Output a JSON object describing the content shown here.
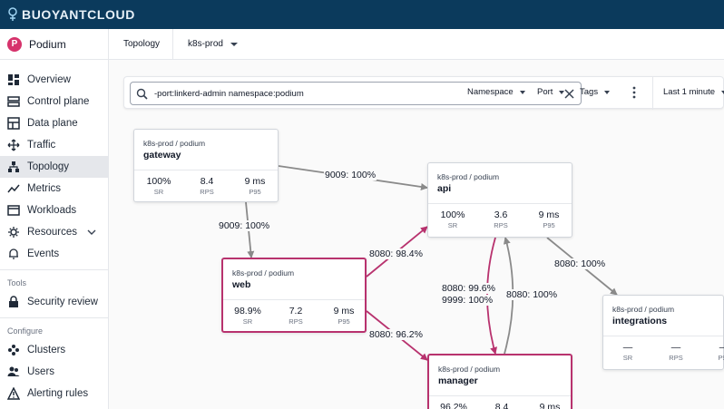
{
  "app": {
    "brand": "BUOYANTCLOUD"
  },
  "org": {
    "logo_letter": "P",
    "name": "Podium"
  },
  "sidebar": {
    "items": [
      {
        "label": "Overview",
        "icon": "dashboard-icon"
      },
      {
        "label": "Control plane",
        "icon": "control-plane-icon"
      },
      {
        "label": "Data plane",
        "icon": "data-plane-icon"
      },
      {
        "label": "Traffic",
        "icon": "traffic-icon"
      },
      {
        "label": "Topology",
        "icon": "topology-icon",
        "active": true
      },
      {
        "label": "Metrics",
        "icon": "metrics-icon"
      },
      {
        "label": "Workloads",
        "icon": "workloads-icon"
      },
      {
        "label": "Resources",
        "icon": "resources-icon",
        "expandable": true
      },
      {
        "label": "Events",
        "icon": "bell-icon"
      }
    ],
    "tools_label": "Tools",
    "tools": [
      {
        "label": "Security review",
        "icon": "lock-icon"
      }
    ],
    "configure_label": "Configure",
    "configure": [
      {
        "label": "Clusters",
        "icon": "clusters-icon"
      },
      {
        "label": "Users",
        "icon": "users-icon"
      },
      {
        "label": "Alerting rules",
        "icon": "alert-icon"
      }
    ]
  },
  "header": {
    "breadcrumb": "Topology",
    "cluster": "k8s-prod"
  },
  "filters": {
    "search_value": "-port:linkerd-admin namespace:podium",
    "namespace_label": "Namespace",
    "port_label": "Port",
    "tags_label": "Tags",
    "time_range": "Last 1 minute"
  },
  "colors": {
    "accent": "#b8326e",
    "topbar": "#0b3a5c",
    "edge_gray": "#8a8a8a"
  },
  "edges": [
    {
      "from": "gateway",
      "to": "api",
      "label": "9009: 100%",
      "highlight": false
    },
    {
      "from": "gateway",
      "to": "web",
      "label": "9009: 100%",
      "highlight": false
    },
    {
      "from": "web",
      "to": "api",
      "label": "8080: 98.4%",
      "highlight": true
    },
    {
      "from": "web",
      "to": "manager",
      "label": "8080: 96.2%",
      "highlight": true
    },
    {
      "from": "api",
      "to": "manager",
      "label": "8080: 99.6%",
      "label2": "9999: 100%",
      "highlight": true
    },
    {
      "from": "manager",
      "to": "api",
      "label": "8080: 100%",
      "highlight": false
    },
    {
      "from": "api",
      "to": "integrations",
      "label": "8080: 100%",
      "highlight": false
    }
  ],
  "nodes": {
    "gateway": {
      "ns": "k8s-prod / podium",
      "name": "gateway",
      "sr": "100%",
      "rps": "8.4",
      "p95": "9 ms",
      "highlight": false
    },
    "api": {
      "ns": "k8s-prod / podium",
      "name": "api",
      "sr": "100%",
      "rps": "3.6",
      "p95": "9 ms",
      "highlight": false
    },
    "web": {
      "ns": "k8s-prod / podium",
      "name": "web",
      "sr": "98.9%",
      "rps": "7.2",
      "p95": "9 ms",
      "highlight": true
    },
    "integrations": {
      "ns": "k8s-prod / podium",
      "name": "integrations",
      "sr": "—",
      "rps": "—",
      "p95": "—",
      "highlight": false
    },
    "manager": {
      "ns": "k8s-prod / podium",
      "name": "manager",
      "sr": "96.2%",
      "rps": "8.4",
      "p95": "9 ms",
      "highlight": true
    }
  },
  "metric_labels": {
    "sr": "SR",
    "rps": "RPS",
    "p95": "P95"
  }
}
